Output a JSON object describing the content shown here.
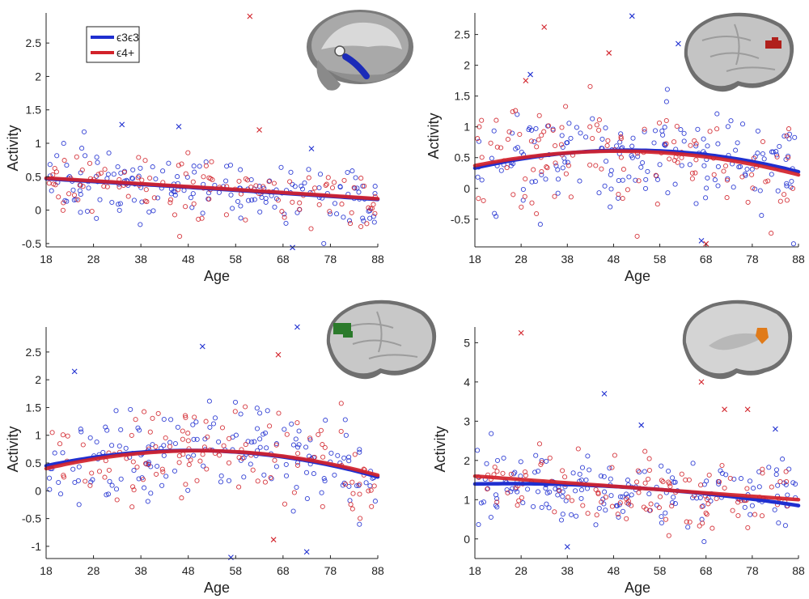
{
  "figure": {
    "legend": {
      "entries": [
        {
          "label": "ϵ3ϵ3",
          "color": "#1f2fd0"
        },
        {
          "label": "ϵ4+",
          "color": "#d2222a"
        }
      ],
      "placement": "upper-left of top-left panel"
    }
  },
  "chart_data": [
    {
      "type": "scatter",
      "panel": "top-left",
      "xlabel": "Age",
      "ylabel": "Activity",
      "xlim": [
        18,
        88
      ],
      "ylim": [
        -0.55,
        2.95
      ],
      "xticks": [
        18,
        28,
        38,
        48,
        58,
        68,
        78,
        88
      ],
      "yticks": [
        -0.5,
        0,
        0.5,
        1,
        1.5,
        2,
        2.5
      ],
      "grid": false,
      "inset": "brain-sagittal-slice-icon",
      "scatter_center": {
        "a": 0.48,
        "b": -0.0045,
        "c": 0.0
      },
      "scatter_spread": 0.26,
      "series": [
        {
          "name": "ϵ3ϵ3",
          "color": "#1f2fd0",
          "fit": {
            "at_18": 0.47,
            "at_53": 0.32,
            "at_88": 0.16
          }
        },
        {
          "name": "ϵ4+",
          "color": "#d2222a",
          "fit": {
            "at_18": 0.48,
            "at_53": 0.33,
            "at_88": 0.17
          }
        }
      ],
      "outliers": [
        {
          "series": "ϵ3ϵ3",
          "x": 34,
          "y": 1.28
        },
        {
          "series": "ϵ3ϵ3",
          "x": 46,
          "y": 1.25
        },
        {
          "series": "ϵ3ϵ3",
          "x": 74,
          "y": 0.92
        },
        {
          "series": "ϵ3ϵ3",
          "x": 70,
          "y": -0.56
        },
        {
          "series": "ϵ4+",
          "x": 61,
          "y": 2.9
        },
        {
          "series": "ϵ4+",
          "x": 63,
          "y": 1.2
        }
      ]
    },
    {
      "type": "scatter",
      "panel": "top-right",
      "xlabel": "Age",
      "ylabel": "Activity",
      "xlim": [
        18,
        88
      ],
      "ylim": [
        -0.95,
        2.85
      ],
      "xticks": [
        18,
        28,
        38,
        48,
        58,
        68,
        78,
        88
      ],
      "yticks": [
        -0.5,
        0,
        0.5,
        1,
        1.5,
        2,
        2.5
      ],
      "grid": false,
      "inset": "brain-lateral-surface-icon",
      "scatter_center": {
        "a": 0.62,
        "b": 0.0,
        "c": -0.00024
      },
      "scatter_spread": 0.5,
      "series": [
        {
          "name": "ϵ3ϵ3",
          "color": "#1f2fd0",
          "fit": {
            "at_18": 0.33,
            "at_53": 0.62,
            "at_88": 0.27
          }
        },
        {
          "name": "ϵ4+",
          "color": "#d2222a",
          "fit": {
            "at_18": 0.37,
            "at_53": 0.6,
            "at_88": 0.22
          }
        }
      ],
      "outliers": [
        {
          "series": "ϵ3ϵ3",
          "x": 52,
          "y": 2.8
        },
        {
          "series": "ϵ3ϵ3",
          "x": 62,
          "y": 2.35
        },
        {
          "series": "ϵ3ϵ3",
          "x": 30,
          "y": 1.85
        },
        {
          "series": "ϵ3ϵ3",
          "x": 67,
          "y": -0.85
        },
        {
          "series": "ϵ4+",
          "x": 33,
          "y": 2.62
        },
        {
          "series": "ϵ4+",
          "x": 47,
          "y": 2.2
        },
        {
          "series": "ϵ4+",
          "x": 29,
          "y": 1.75
        },
        {
          "series": "ϵ4+",
          "x": 68,
          "y": -0.9
        }
      ]
    },
    {
      "type": "scatter",
      "panel": "bottom-left",
      "xlabel": "Age",
      "ylabel": "Activity",
      "xlim": [
        18,
        88
      ],
      "ylim": [
        -1.22,
        2.95
      ],
      "xticks": [
        18,
        28,
        38,
        48,
        58,
        68,
        78,
        88
      ],
      "yticks": [
        -1,
        -0.5,
        0,
        0.5,
        1,
        1.5,
        2,
        2.5
      ],
      "grid": false,
      "inset": "brain-lateral-surface-icon",
      "scatter_center": {
        "a": 0.72,
        "b": 0.0,
        "c": -0.00028
      },
      "scatter_spread": 0.5,
      "series": [
        {
          "name": "ϵ3ϵ3",
          "color": "#1f2fd0",
          "fit": {
            "at_18": 0.45,
            "at_53": 0.72,
            "at_88": 0.25
          }
        },
        {
          "name": "ϵ4+",
          "color": "#d2222a",
          "fit": {
            "at_18": 0.4,
            "at_53": 0.72,
            "at_88": 0.28
          }
        }
      ],
      "outliers": [
        {
          "series": "ϵ3ϵ3",
          "x": 24,
          "y": 2.15
        },
        {
          "series": "ϵ3ϵ3",
          "x": 51,
          "y": 2.6
        },
        {
          "series": "ϵ3ϵ3",
          "x": 71,
          "y": 2.95
        },
        {
          "series": "ϵ3ϵ3",
          "x": 57,
          "y": -1.2
        },
        {
          "series": "ϵ3ϵ3",
          "x": 73,
          "y": -1.1
        },
        {
          "series": "ϵ4+",
          "x": 67,
          "y": 2.45
        },
        {
          "series": "ϵ4+",
          "x": 66,
          "y": -0.88
        }
      ]
    },
    {
      "type": "scatter",
      "panel": "bottom-right",
      "xlabel": "Age",
      "ylabel": "Activity",
      "xlim": [
        18,
        88
      ],
      "ylim": [
        -0.5,
        5.4
      ],
      "xticks": [
        18,
        28,
        38,
        48,
        58,
        68,
        78,
        88
      ],
      "yticks": [
        0,
        1,
        2,
        3,
        4,
        5
      ],
      "grid": false,
      "inset": "brain-medial-surface-icon",
      "scatter_center": {
        "a": 1.5,
        "b": -0.0075,
        "c": 0.0
      },
      "scatter_spread": 0.55,
      "series": [
        {
          "name": "ϵ3ϵ3",
          "color": "#1f2fd0",
          "fit": {
            "at_18": 1.4,
            "at_53": 1.3,
            "at_88": 0.85
          }
        },
        {
          "name": "ϵ4+",
          "color": "#d2222a",
          "fit": {
            "at_18": 1.6,
            "at_53": 1.3,
            "at_88": 1.0
          }
        }
      ],
      "outliers": [
        {
          "series": "ϵ3ϵ3",
          "x": 46,
          "y": 3.7
        },
        {
          "series": "ϵ3ϵ3",
          "x": 54,
          "y": 2.9
        },
        {
          "series": "ϵ3ϵ3",
          "x": 38,
          "y": -0.2
        },
        {
          "series": "ϵ3ϵ3",
          "x": 83,
          "y": 2.8
        },
        {
          "series": "ϵ4+",
          "x": 28,
          "y": 5.25
        },
        {
          "series": "ϵ4+",
          "x": 67,
          "y": 4.0
        },
        {
          "series": "ϵ4+",
          "x": 72,
          "y": 3.3
        },
        {
          "series": "ϵ4+",
          "x": 77,
          "y": 3.3
        }
      ]
    }
  ]
}
